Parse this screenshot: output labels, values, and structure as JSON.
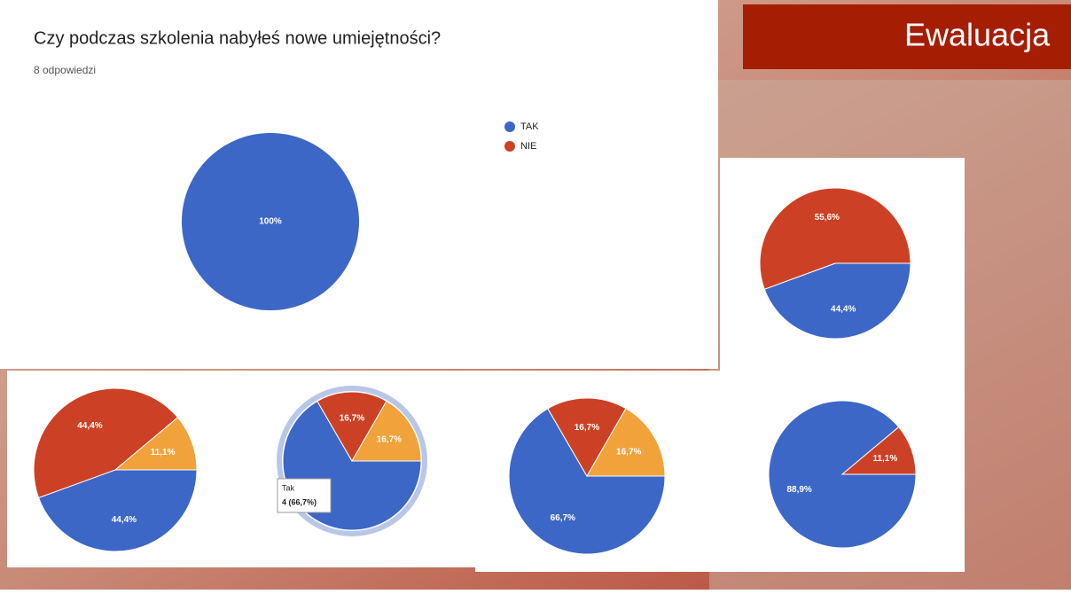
{
  "slide_title": "Ewaluacja",
  "chart_data": [
    {
      "type": "pie",
      "title": "Czy podczas szkolenia nabyłeś nowe umiejętności?",
      "subtitle": "8 odpowiedzi",
      "categories": [
        "TAK",
        "NIE"
      ],
      "colors": [
        "#3d67c6",
        "#cc4125"
      ],
      "values": [
        100,
        0
      ],
      "value_labels": [
        "100%",
        null
      ],
      "legend": "right"
    },
    {
      "type": "pie",
      "colors": [
        "#3d67c6",
        "#cc4125"
      ],
      "values": [
        44.4,
        55.6
      ],
      "value_labels": [
        "44,4%",
        "55,6%"
      ]
    },
    {
      "type": "pie",
      "colors": [
        "#3d67c6",
        "#cc4125",
        "#f1a23a"
      ],
      "values": [
        44.4,
        44.4,
        11.1
      ],
      "value_labels": [
        "44,4%",
        "44,4%",
        "11,1%"
      ]
    },
    {
      "type": "pie",
      "colors": [
        "#3d67c6",
        "#cc4125",
        "#f1a23a"
      ],
      "values": [
        66.7,
        16.7,
        16.7
      ],
      "value_labels": [
        null,
        "16,7%",
        "16,7%"
      ],
      "tooltip": [
        "Tak",
        "4 (66,7%)"
      ]
    },
    {
      "type": "pie",
      "colors": [
        "#3d67c6",
        "#cc4125",
        "#f1a23a"
      ],
      "values": [
        66.7,
        16.7,
        16.7
      ],
      "value_labels": [
        "66,7%",
        "16,7%",
        "16,7%"
      ]
    },
    {
      "type": "pie",
      "colors": [
        "#3d67c6",
        "#cc4125"
      ],
      "values": [
        88.9,
        11.1
      ],
      "value_labels": [
        "88,9%",
        "11,1%"
      ]
    }
  ]
}
